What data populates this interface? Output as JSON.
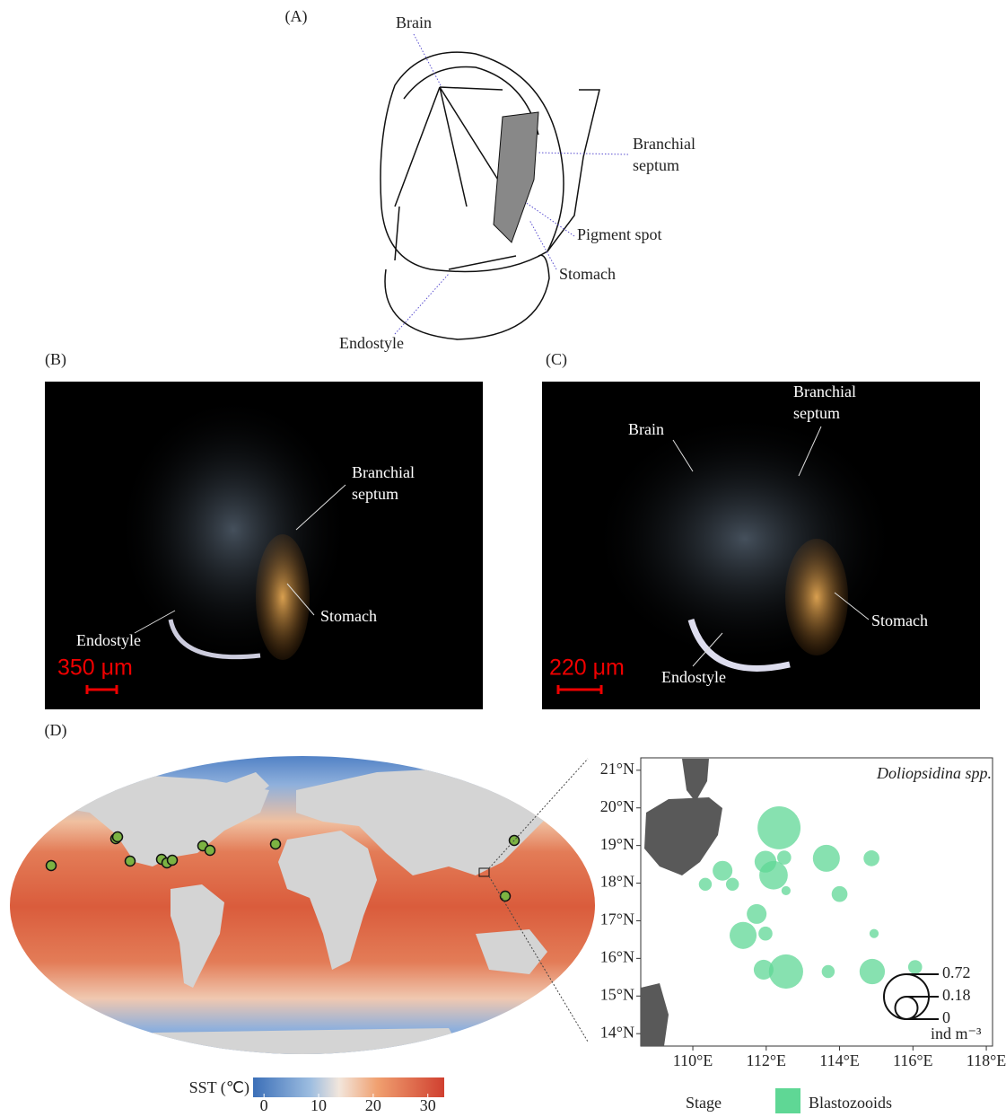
{
  "panels": {
    "a": {
      "label": "(A)",
      "brain": "Brain",
      "branchial_septum": [
        "Branchial",
        "septum"
      ],
      "pigment_spot": "Pigment spot",
      "stomach": "Stomach",
      "endostyle": "Endostyle"
    },
    "b": {
      "label": "(B)",
      "branchial_septum": [
        "Branchial",
        "septum"
      ],
      "stomach": "Stomach",
      "endostyle": "Endostyle",
      "scale": "350 μm"
    },
    "c": {
      "label": "(C)",
      "brain": "Brain",
      "branchial_septum": [
        "Branchial",
        "septum"
      ],
      "stomach": "Stomach",
      "endostyle": "Endostyle",
      "scale": "220 μm"
    },
    "d": {
      "label": "(D)"
    }
  },
  "sst_colorbar": {
    "label": "SST (℃)",
    "lim": [
      -2,
      33
    ],
    "ticks": [
      0,
      10,
      20,
      30
    ]
  },
  "chart_data": {
    "type": "scatter",
    "title": "Doliopsidina spp.",
    "xlim": [
      108.58,
      118.17
    ],
    "ylim": [
      13.67,
      21.33
    ],
    "xticks": [
      {
        "value": 110,
        "label": "110°E"
      },
      {
        "value": 112,
        "label": "112°E"
      },
      {
        "value": 114,
        "label": "114°E"
      },
      {
        "value": 116,
        "label": "116°E"
      },
      {
        "value": 118,
        "label": "118°E"
      }
    ],
    "yticks": [
      {
        "value": 14,
        "label": "14°N"
      },
      {
        "value": 15,
        "label": "15°N"
      },
      {
        "value": 16,
        "label": "16°N"
      },
      {
        "value": 17,
        "label": "17°N"
      },
      {
        "value": 18,
        "label": "18°N"
      },
      {
        "value": 19,
        "label": "19°N"
      },
      {
        "value": 20,
        "label": "20°N"
      },
      {
        "value": 21,
        "label": "21°N"
      }
    ],
    "series": [
      {
        "name": "Blastozooids",
        "color": "#5fd795",
        "x": [
          112.35,
          113.64,
          114.87,
          112.49,
          111.98,
          112.2,
          110.81,
          110.34,
          111.08,
          112.54,
          114.0,
          111.74,
          111.37,
          111.98,
          114.94,
          111.93,
          112.54,
          113.69,
          114.89,
          116.06
        ],
        "y": [
          19.47,
          18.66,
          18.66,
          18.68,
          18.57,
          18.21,
          18.33,
          17.97,
          17.97,
          17.8,
          17.71,
          17.18,
          16.61,
          16.66,
          16.66,
          15.7,
          15.65,
          15.65,
          15.65,
          15.77
        ],
        "sizes": [
          0.66,
          0.26,
          0.09,
          0.07,
          0.17,
          0.29,
          0.14,
          0.06,
          0.06,
          0.03,
          0.09,
          0.14,
          0.26,
          0.07,
          0.03,
          0.14,
          0.42,
          0.06,
          0.23,
          0.07
        ]
      }
    ],
    "size_legend": {
      "values": [
        0.72,
        0.18,
        0
      ],
      "unit": "ind m⁻³"
    },
    "legend": {
      "title": "Stage"
    }
  }
}
